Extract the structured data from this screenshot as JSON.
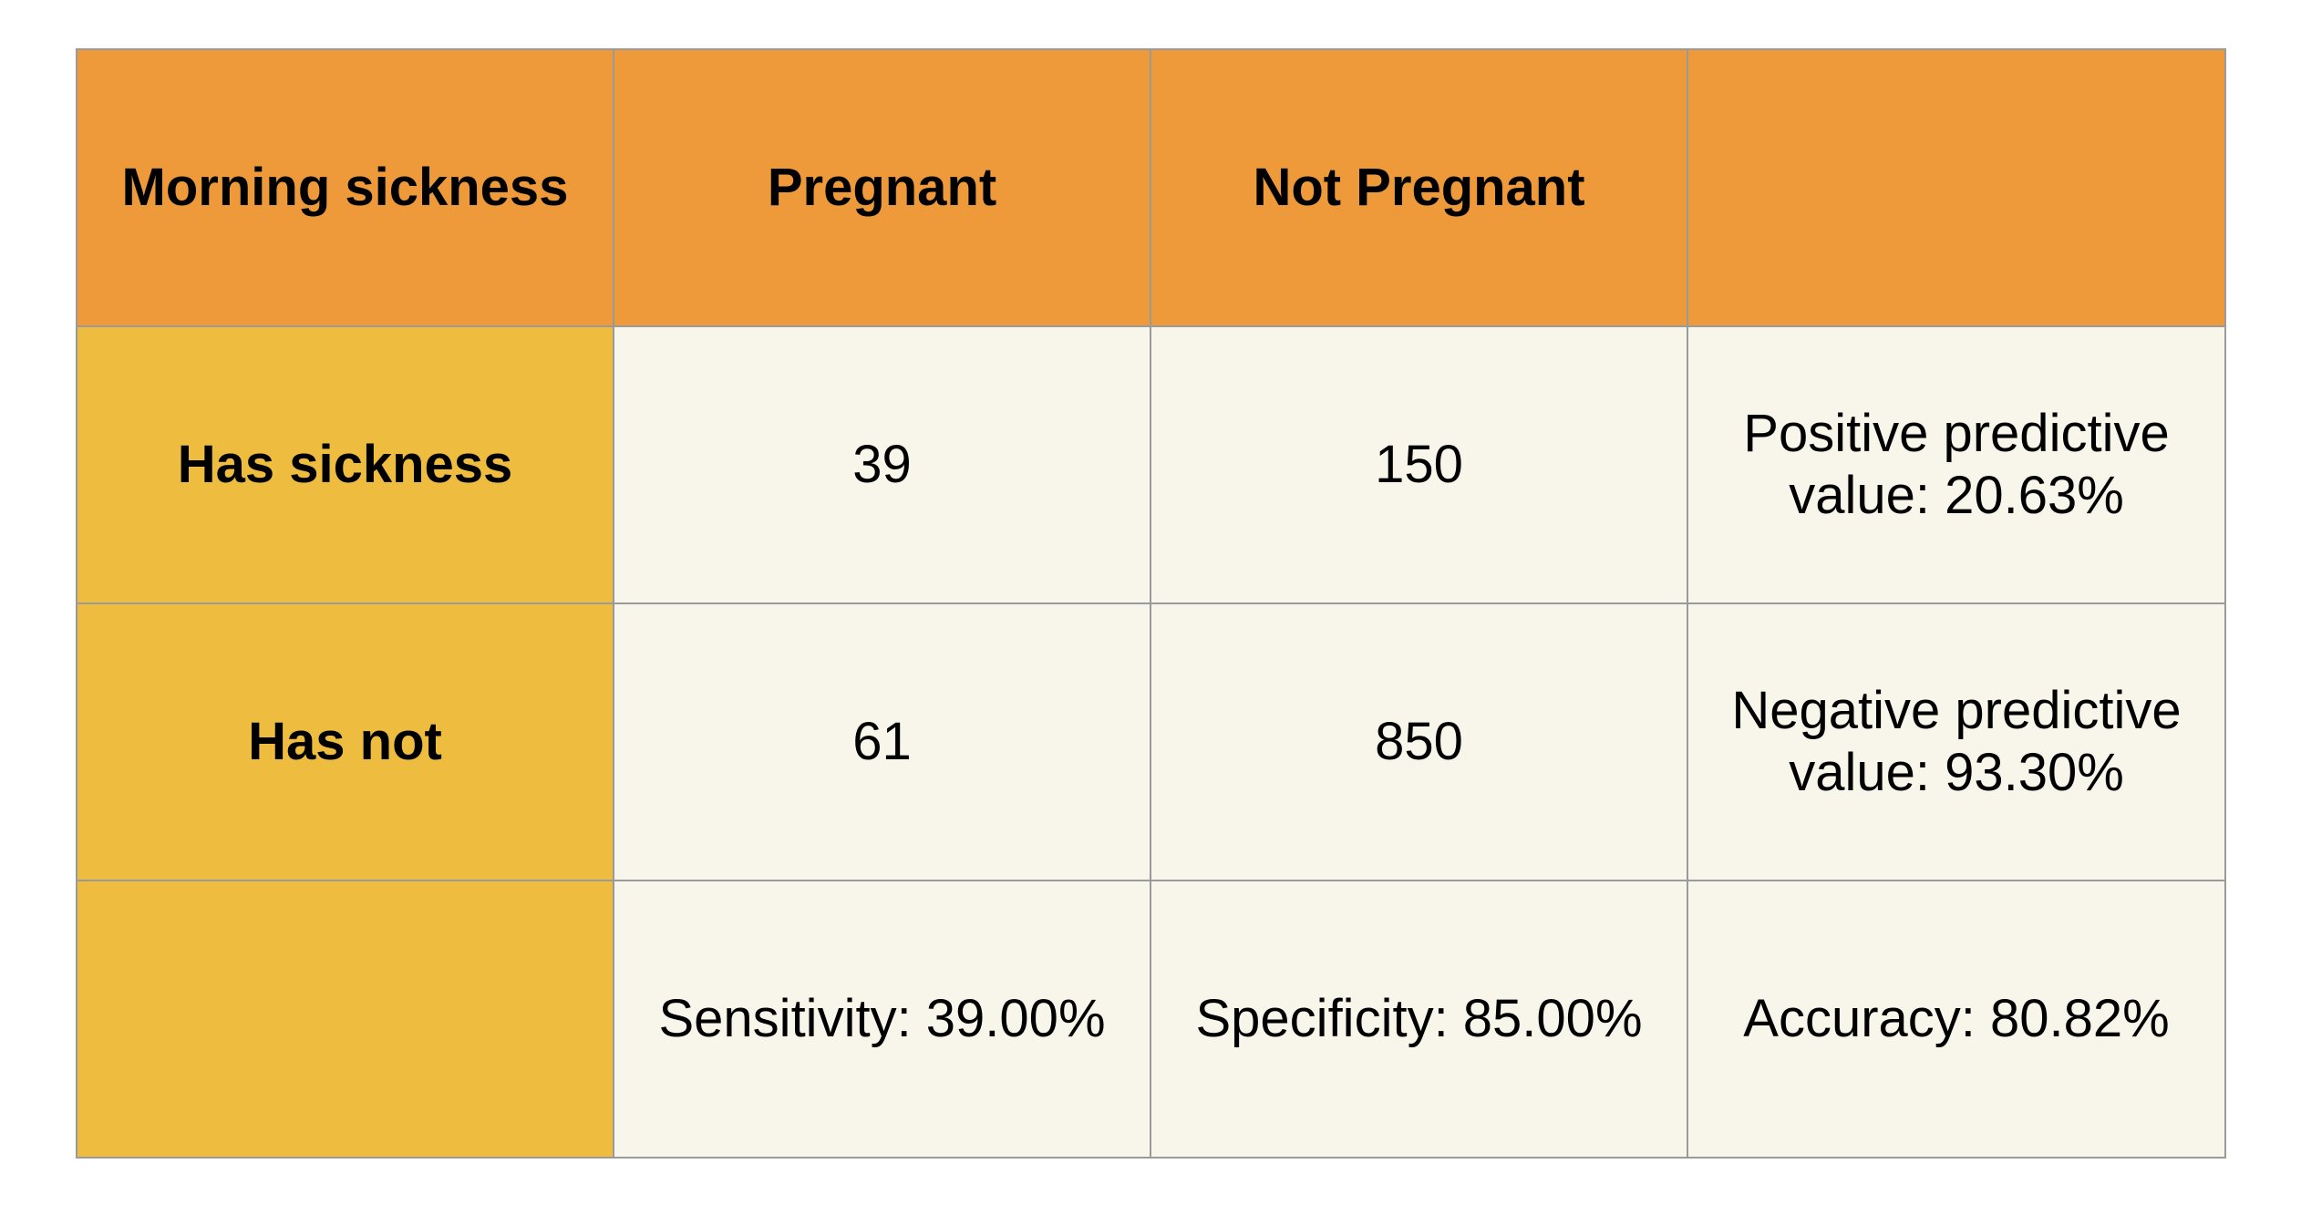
{
  "header": {
    "corner": "Morning sickness",
    "col_pregnant": "Pregnant",
    "col_not_pregnant": "Not Pregnant",
    "col_extra": ""
  },
  "rows": [
    {
      "label": "Has sickness",
      "pregnant": "39",
      "not_pregnant": "150",
      "metric_line1": "Positive predictive",
      "metric_line2": "value: 20.63%"
    },
    {
      "label": "Has not",
      "pregnant": "61",
      "not_pregnant": "850",
      "metric_line1": "Negative predictive",
      "metric_line2": "value: 93.30%"
    }
  ],
  "footer": {
    "label": "",
    "sensitivity": "Sensitivity: 39.00%",
    "specificity": "Specificity: 85.00%",
    "accuracy": "Accuracy: 80.82%"
  },
  "colors": {
    "header_bg": "#ee9a3a",
    "row_header_bg": "#eebd3f",
    "cell_bg": "#f8f5ea",
    "border": "#9a9a9a"
  }
}
